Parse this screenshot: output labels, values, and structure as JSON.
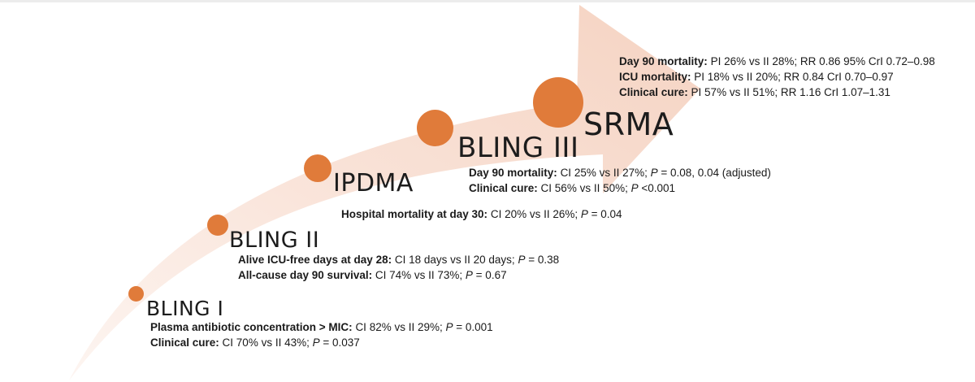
{
  "stages": [
    {
      "id": "bling-i",
      "title": "BLING I",
      "lines": [
        {
          "label": "Plasma antibiotic concentration > MIC:",
          "text_pre": "CI 82% vs II 29%; ",
          "p": "P",
          "text_post": " = 0.001"
        },
        {
          "label": "Clinical cure:",
          "text_pre": "CI 70% vs II 43%; ",
          "p": "P",
          "text_post": " = 0.037"
        }
      ]
    },
    {
      "id": "bling-ii",
      "title": "BLING II",
      "lines": [
        {
          "label": "Alive ICU-free days at day 28:",
          "text_pre": "CI 18 days vs II 20 days; ",
          "p": "P",
          "text_post": " = 0.38"
        },
        {
          "label": "All-cause day 90 survival:",
          "text_pre": "CI 74% vs II 73%; ",
          "p": "P",
          "text_post": " = 0.67"
        }
      ]
    },
    {
      "id": "ipdma",
      "title": "IPDMA",
      "lines": [
        {
          "label": "Hospital mortality at day 30:",
          "text_pre": "CI 20% vs II 26%; ",
          "p": "P",
          "text_post": " = 0.04"
        }
      ]
    },
    {
      "id": "bling-iii",
      "title": "BLING III",
      "lines": [
        {
          "label": "Day 90 mortality:",
          "text_pre": "CI 25% vs II 27%; ",
          "p": "P",
          "text_post": " = 0.08, 0.04 (adjusted)"
        },
        {
          "label": "Clinical cure:",
          "text_pre": "CI 56% vs II 50%; ",
          "p": "P",
          "text_post": " <0.001"
        }
      ]
    },
    {
      "id": "srma",
      "title": "SRMA",
      "lines": [
        {
          "label": "Day 90 mortality:",
          "text_pre": "PI 26% vs II 28%; RR 0.86 95% CrI 0.72–0.98",
          "p": "",
          "text_post": ""
        },
        {
          "label": "ICU mortality:",
          "text_pre": "PI 18% vs II 20%; RR 0.84 CrI 0.70–0.97",
          "p": "",
          "text_post": ""
        },
        {
          "label": "Clinical cure:",
          "text_pre": "PI 57% vs II 51%; RR 1.16 CrI 1.07–1.31",
          "p": "",
          "text_post": ""
        }
      ]
    }
  ],
  "colors": {
    "circle": "#e07b3a",
    "arrow_fill": "#f9e3d9",
    "text": "#1a1a1a"
  }
}
